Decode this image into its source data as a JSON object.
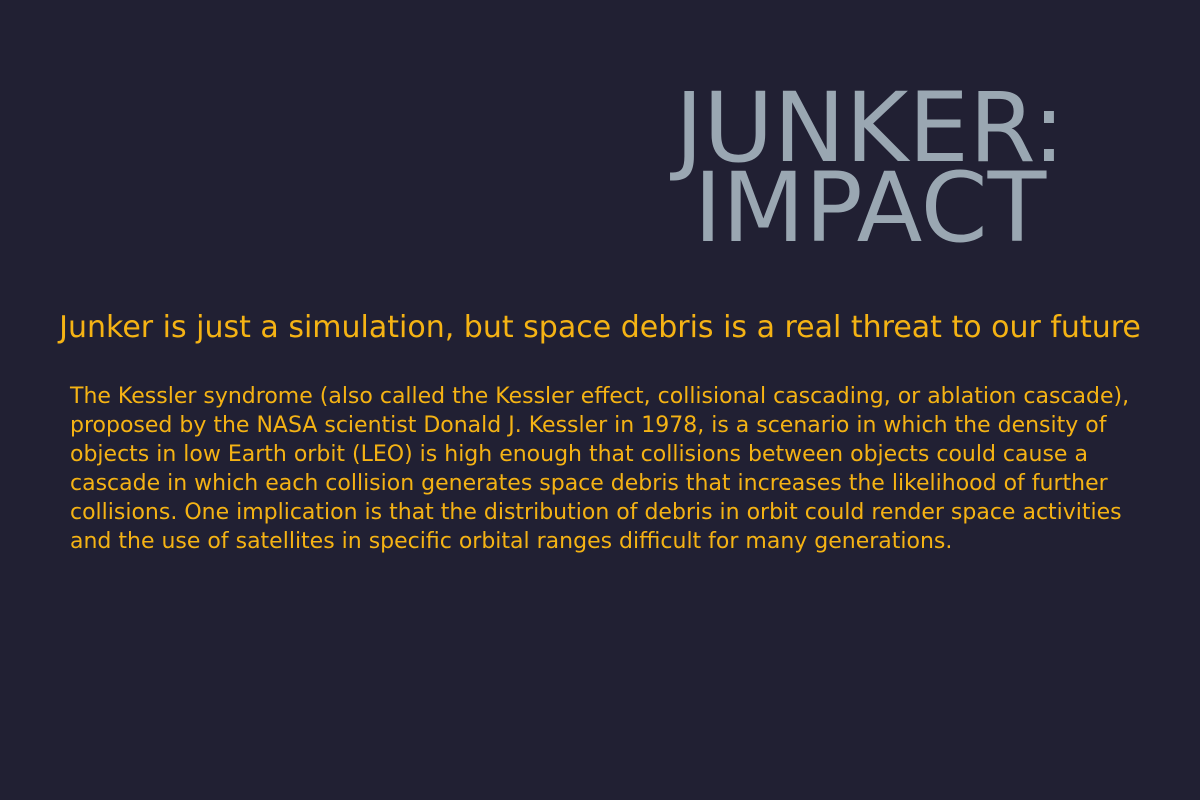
{
  "title": {
    "line1": "JUNKER:",
    "line2": "IMPACT"
  },
  "tagline": "Junker is just a simulation, but space debris is a real threat to our future",
  "description": "The Kessler syndrome (also called the Kessler effect, collisional cascading, or ablation cascade), proposed by the NASA scientist Donald J. Kessler in 1978, is a scenario in which the density of objects in low Earth orbit (LEO) is high enough that collisions between objects could cause a cascade in which each collision generates space debris that increases the likelihood of further collisions. One implication is that the distribution of debris in orbit could render space activities and the use of satellites in specific orbital ranges difficult for many generations.",
  "colors": {
    "background": "#212033",
    "title": "#9aa7b2",
    "accent": "#f5b314"
  }
}
